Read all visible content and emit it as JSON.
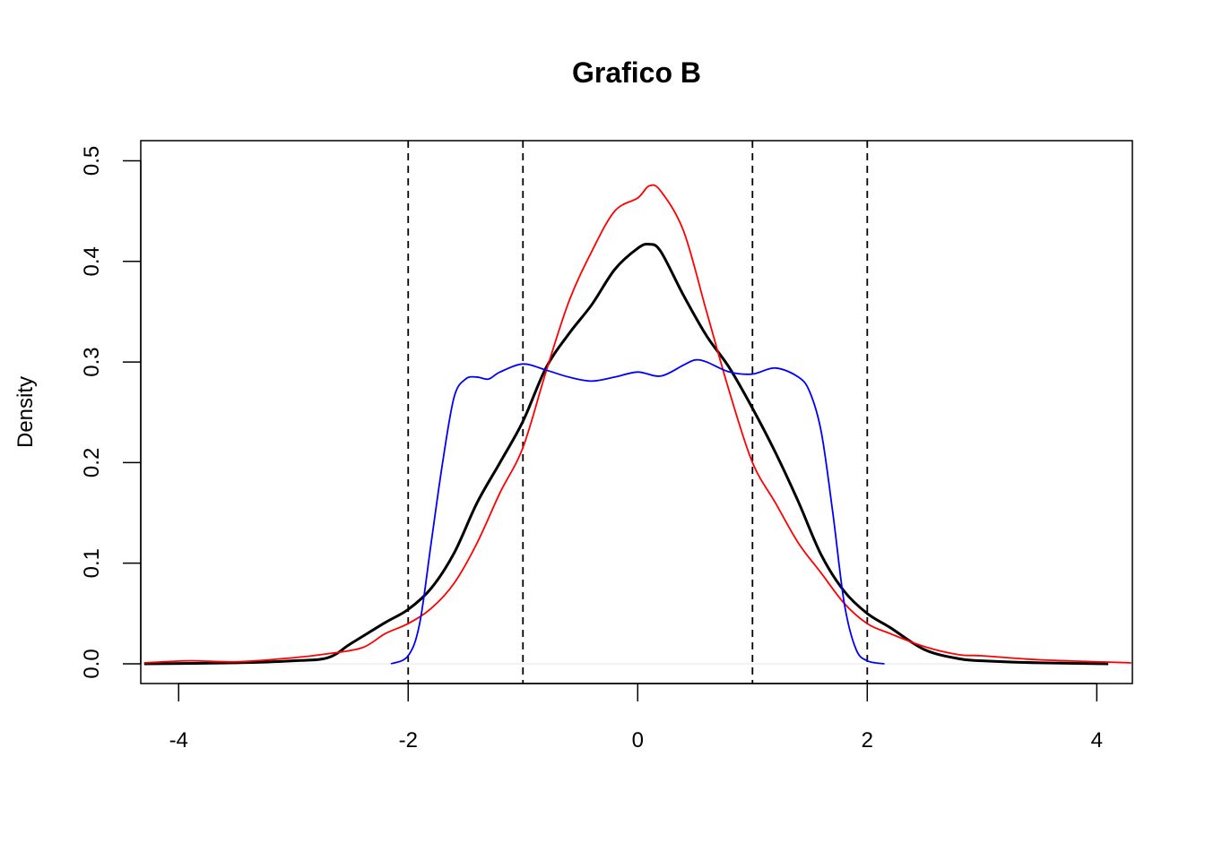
{
  "chart_data": {
    "type": "line",
    "title": "Grafico B",
    "xlabel": "",
    "ylabel": "Density",
    "xlim": [
      -4.33,
      4.31
    ],
    "ylim": [
      -0.0196,
      0.52
    ],
    "xticks": [
      -4,
      -2,
      0,
      2,
      4
    ],
    "yticks": [
      0.0,
      0.1,
      0.2,
      0.3,
      0.4,
      0.5
    ],
    "ytick_labels": [
      "0.0",
      "0.1",
      "0.2",
      "0.3",
      "0.4",
      "0.5"
    ],
    "grid": false,
    "vlines": [
      -2,
      -1,
      1,
      2
    ],
    "vline_color": "#000000",
    "series": [
      {
        "name": "black",
        "color": "#000000",
        "width": 3,
        "x": [
          -4.3,
          -3.5,
          -3,
          -2.7,
          -2.5,
          -2.2,
          -2,
          -1.8,
          -1.6,
          -1.4,
          -1.2,
          -1,
          -0.8,
          -0.6,
          -0.4,
          -0.2,
          0,
          0.1,
          0.2,
          0.4,
          0.6,
          0.8,
          1,
          1.2,
          1.4,
          1.6,
          1.8,
          2,
          2.2,
          2.5,
          2.8,
          3,
          3.5,
          4.1
        ],
        "y": [
          0,
          0.001,
          0.003,
          0.006,
          0.02,
          0.041,
          0.054,
          0.075,
          0.11,
          0.16,
          0.2,
          0.241,
          0.294,
          0.328,
          0.357,
          0.392,
          0.413,
          0.417,
          0.41,
          0.366,
          0.326,
          0.294,
          0.254,
          0.21,
          0.161,
          0.108,
          0.072,
          0.05,
          0.036,
          0.014,
          0.005,
          0.003,
          0.001,
          0
        ]
      },
      {
        "name": "red",
        "color": "#FF0000",
        "width": 1.8,
        "x": [
          -4.3,
          -3.9,
          -3.5,
          -3,
          -2.7,
          -2.4,
          -2.2,
          -2,
          -1.8,
          -1.6,
          -1.4,
          -1.2,
          -1,
          -0.8,
          -0.6,
          -0.4,
          -0.2,
          0,
          0.1,
          0.2,
          0.4,
          0.6,
          0.8,
          1,
          1.2,
          1.4,
          1.6,
          1.8,
          2,
          2.2,
          2.5,
          2.8,
          3,
          3.5,
          4.3
        ],
        "y": [
          0.001,
          0.003,
          0.002,
          0.006,
          0.01,
          0.016,
          0.03,
          0.04,
          0.055,
          0.08,
          0.12,
          0.17,
          0.215,
          0.29,
          0.36,
          0.41,
          0.45,
          0.463,
          0.475,
          0.47,
          0.43,
          0.35,
          0.27,
          0.2,
          0.16,
          0.12,
          0.09,
          0.06,
          0.04,
          0.03,
          0.017,
          0.009,
          0.008,
          0.004,
          0.001
        ]
      },
      {
        "name": "blue",
        "color": "#0000FF",
        "width": 1.8,
        "x": [
          -2.15,
          -2,
          -1.9,
          -1.8,
          -1.7,
          -1.6,
          -1.5,
          -1.4,
          -1.3,
          -1.2,
          -1,
          -0.8,
          -0.6,
          -0.4,
          -0.2,
          0,
          0.2,
          0.4,
          0.5,
          0.6,
          0.8,
          1,
          1.2,
          1.4,
          1.5,
          1.6,
          1.7,
          1.8,
          1.9,
          2,
          2.15
        ],
        "y": [
          0,
          0.008,
          0.04,
          0.12,
          0.2,
          0.265,
          0.283,
          0.285,
          0.283,
          0.29,
          0.298,
          0.292,
          0.285,
          0.281,
          0.285,
          0.29,
          0.286,
          0.297,
          0.302,
          0.3,
          0.29,
          0.288,
          0.294,
          0.285,
          0.27,
          0.23,
          0.15,
          0.06,
          0.015,
          0.003,
          0
        ]
      }
    ]
  }
}
